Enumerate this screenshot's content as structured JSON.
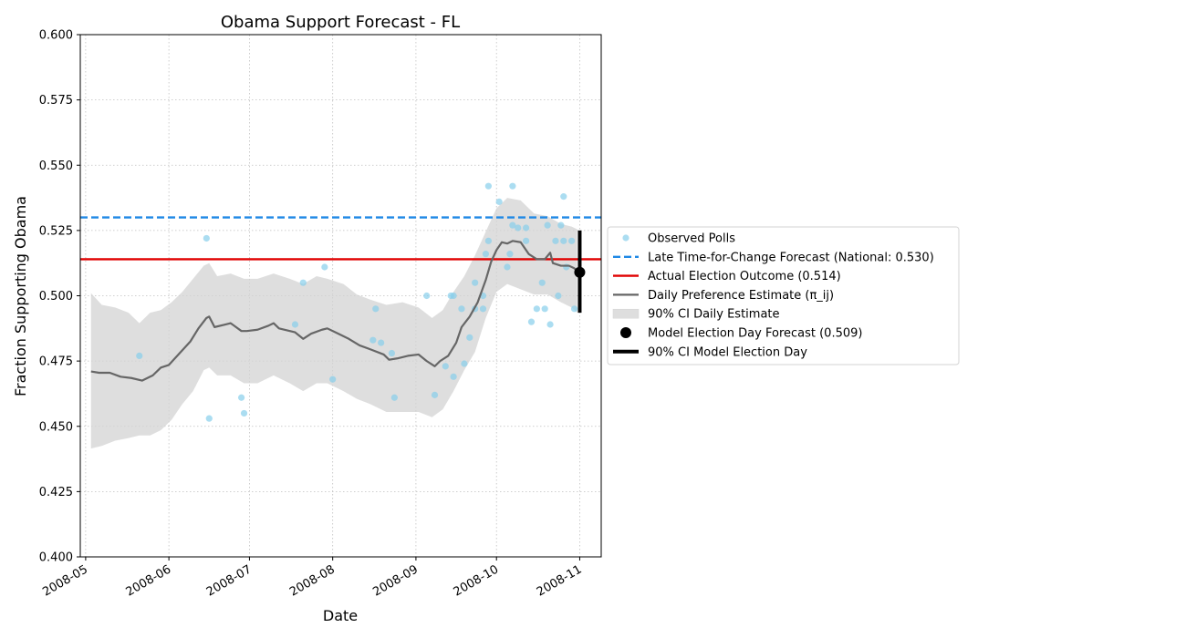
{
  "chart_data": {
    "type": "line",
    "title": "Obama Support Forecast - FL",
    "xlabel": "Date",
    "ylabel": "Fraction Supporting Obama",
    "xlim": [
      "2008-04-29",
      "2008-11-09"
    ],
    "ylim": [
      0.4,
      0.6
    ],
    "grid": true,
    "legend_placement": "right, outside plot",
    "x_ticks": [
      "2008-05",
      "2008-06",
      "2008-07",
      "2008-08",
      "2008-09",
      "2008-10",
      "2008-11"
    ],
    "y_ticks": [
      "0.400",
      "0.425",
      "0.450",
      "0.475",
      "0.500",
      "0.525",
      "0.550",
      "0.575",
      "0.600"
    ],
    "colors": {
      "polls": "#87ceeb",
      "forecast_line": "#1e88e5",
      "actual_line": "#e00000",
      "estimate_line": "#666666",
      "ci_band": "#d3d3d3",
      "model_point": "#000000"
    },
    "series": [
      {
        "name": "Observed Polls",
        "kind": "scatter",
        "points": [
          {
            "x": "2008-05-21",
            "y": 0.477
          },
          {
            "x": "2008-06-15",
            "y": 0.522
          },
          {
            "x": "2008-06-16",
            "y": 0.453
          },
          {
            "x": "2008-06-28",
            "y": 0.461
          },
          {
            "x": "2008-06-29",
            "y": 0.455
          },
          {
            "x": "2008-07-18",
            "y": 0.489
          },
          {
            "x": "2008-07-21",
            "y": 0.505
          },
          {
            "x": "2008-07-29",
            "y": 0.511
          },
          {
            "x": "2008-08-01",
            "y": 0.468
          },
          {
            "x": "2008-08-16",
            "y": 0.483
          },
          {
            "x": "2008-08-17",
            "y": 0.495
          },
          {
            "x": "2008-08-19",
            "y": 0.482
          },
          {
            "x": "2008-08-23",
            "y": 0.478
          },
          {
            "x": "2008-08-24",
            "y": 0.461
          },
          {
            "x": "2008-09-05",
            "y": 0.5
          },
          {
            "x": "2008-09-08",
            "y": 0.462
          },
          {
            "x": "2008-09-12",
            "y": 0.473
          },
          {
            "x": "2008-09-14",
            "y": 0.5
          },
          {
            "x": "2008-09-15",
            "y": 0.469
          },
          {
            "x": "2008-09-15",
            "y": 0.5
          },
          {
            "x": "2008-09-18",
            "y": 0.495
          },
          {
            "x": "2008-09-19",
            "y": 0.474
          },
          {
            "x": "2008-09-21",
            "y": 0.484
          },
          {
            "x": "2008-09-23",
            "y": 0.505
          },
          {
            "x": "2008-09-23",
            "y": 0.495
          },
          {
            "x": "2008-09-26",
            "y": 0.5
          },
          {
            "x": "2008-09-26",
            "y": 0.495
          },
          {
            "x": "2008-09-27",
            "y": 0.516
          },
          {
            "x": "2008-09-28",
            "y": 0.521
          },
          {
            "x": "2008-09-28",
            "y": 0.542
          },
          {
            "x": "2008-10-02",
            "y": 0.536
          },
          {
            "x": "2008-10-05",
            "y": 0.511
          },
          {
            "x": "2008-10-06",
            "y": 0.516
          },
          {
            "x": "2008-10-07",
            "y": 0.542
          },
          {
            "x": "2008-10-07",
            "y": 0.527
          },
          {
            "x": "2008-10-09",
            "y": 0.526
          },
          {
            "x": "2008-10-12",
            "y": 0.526
          },
          {
            "x": "2008-10-12",
            "y": 0.521
          },
          {
            "x": "2008-10-14",
            "y": 0.49
          },
          {
            "x": "2008-10-16",
            "y": 0.495
          },
          {
            "x": "2008-10-18",
            "y": 0.505
          },
          {
            "x": "2008-10-19",
            "y": 0.495
          },
          {
            "x": "2008-10-20",
            "y": 0.527
          },
          {
            "x": "2008-10-21",
            "y": 0.489
          },
          {
            "x": "2008-10-23",
            "y": 0.521
          },
          {
            "x": "2008-10-24",
            "y": 0.5
          },
          {
            "x": "2008-10-25",
            "y": 0.527
          },
          {
            "x": "2008-10-26",
            "y": 0.521
          },
          {
            "x": "2008-10-26",
            "y": 0.538
          },
          {
            "x": "2008-10-27",
            "y": 0.511
          },
          {
            "x": "2008-10-29",
            "y": 0.521
          },
          {
            "x": "2008-10-30",
            "y": 0.495
          }
        ]
      },
      {
        "name": "Late Time-for-Change Forecast (National: 0.530)",
        "kind": "hline",
        "y": 0.53,
        "style": "dashed"
      },
      {
        "name": "Actual Election Outcome (0.514)",
        "kind": "hline",
        "y": 0.514,
        "style": "solid"
      },
      {
        "name": "Daily Preference Estimate (π_ij)",
        "kind": "line",
        "points": [
          {
            "x": "2008-05-03",
            "y": 0.471
          },
          {
            "x": "2008-05-06",
            "y": 0.4705
          },
          {
            "x": "2008-05-10",
            "y": 0.4705
          },
          {
            "x": "2008-05-14",
            "y": 0.469
          },
          {
            "x": "2008-05-18",
            "y": 0.4685
          },
          {
            "x": "2008-05-22",
            "y": 0.4675
          },
          {
            "x": "2008-05-26",
            "y": 0.4695
          },
          {
            "x": "2008-05-29",
            "y": 0.4725
          },
          {
            "x": "2008-06-01",
            "y": 0.4735
          },
          {
            "x": "2008-06-05",
            "y": 0.478
          },
          {
            "x": "2008-06-09",
            "y": 0.4825
          },
          {
            "x": "2008-06-12",
            "y": 0.4875
          },
          {
            "x": "2008-06-15",
            "y": 0.4915
          },
          {
            "x": "2008-06-16",
            "y": 0.492
          },
          {
            "x": "2008-06-18",
            "y": 0.488
          },
          {
            "x": "2008-06-22",
            "y": 0.489
          },
          {
            "x": "2008-06-24",
            "y": 0.4895
          },
          {
            "x": "2008-06-28",
            "y": 0.4865
          },
          {
            "x": "2008-06-30",
            "y": 0.4865
          },
          {
            "x": "2008-07-04",
            "y": 0.487
          },
          {
            "x": "2008-07-08",
            "y": 0.4885
          },
          {
            "x": "2008-07-10",
            "y": 0.4895
          },
          {
            "x": "2008-07-12",
            "y": 0.4875
          },
          {
            "x": "2008-07-18",
            "y": 0.486
          },
          {
            "x": "2008-07-21",
            "y": 0.4835
          },
          {
            "x": "2008-07-24",
            "y": 0.4855
          },
          {
            "x": "2008-07-28",
            "y": 0.487
          },
          {
            "x": "2008-07-30",
            "y": 0.4875
          },
          {
            "x": "2008-08-03",
            "y": 0.4855
          },
          {
            "x": "2008-08-07",
            "y": 0.4835
          },
          {
            "x": "2008-08-11",
            "y": 0.481
          },
          {
            "x": "2008-08-15",
            "y": 0.4795
          },
          {
            "x": "2008-08-20",
            "y": 0.4775
          },
          {
            "x": "2008-08-22",
            "y": 0.4755
          },
          {
            "x": "2008-08-25",
            "y": 0.476
          },
          {
            "x": "2008-08-29",
            "y": 0.477
          },
          {
            "x": "2008-09-02",
            "y": 0.4775
          },
          {
            "x": "2008-09-05",
            "y": 0.475
          },
          {
            "x": "2008-09-08",
            "y": 0.473
          },
          {
            "x": "2008-09-10",
            "y": 0.475
          },
          {
            "x": "2008-09-13",
            "y": 0.477
          },
          {
            "x": "2008-09-16",
            "y": 0.482
          },
          {
            "x": "2008-09-18",
            "y": 0.488
          },
          {
            "x": "2008-09-21",
            "y": 0.492
          },
          {
            "x": "2008-09-24",
            "y": 0.4975
          },
          {
            "x": "2008-09-27",
            "y": 0.506
          },
          {
            "x": "2008-09-29",
            "y": 0.513
          },
          {
            "x": "2008-10-01",
            "y": 0.5175
          },
          {
            "x": "2008-10-03",
            "y": 0.5205
          },
          {
            "x": "2008-10-05",
            "y": 0.52
          },
          {
            "x": "2008-10-07",
            "y": 0.521
          },
          {
            "x": "2008-10-10",
            "y": 0.5205
          },
          {
            "x": "2008-10-13",
            "y": 0.516
          },
          {
            "x": "2008-10-16",
            "y": 0.514
          },
          {
            "x": "2008-10-19",
            "y": 0.514
          },
          {
            "x": "2008-10-21",
            "y": 0.5165
          },
          {
            "x": "2008-10-22",
            "y": 0.5125
          },
          {
            "x": "2008-10-25",
            "y": 0.5115
          },
          {
            "x": "2008-10-28",
            "y": 0.5115
          },
          {
            "x": "2008-10-30",
            "y": 0.5105
          },
          {
            "x": "2008-10-31",
            "y": 0.5095
          }
        ]
      },
      {
        "name": "90% CI Daily Estimate",
        "kind": "band",
        "points": [
          {
            "x": "2008-05-03",
            "lo": 0.4415,
            "hi": 0.501
          },
          {
            "x": "2008-05-07",
            "lo": 0.4425,
            "hi": 0.4965
          },
          {
            "x": "2008-05-12",
            "lo": 0.4445,
            "hi": 0.4955
          },
          {
            "x": "2008-05-17",
            "lo": 0.4455,
            "hi": 0.4935
          },
          {
            "x": "2008-05-21",
            "lo": 0.4465,
            "hi": 0.4895
          },
          {
            "x": "2008-05-25",
            "lo": 0.4465,
            "hi": 0.4935
          },
          {
            "x": "2008-05-29",
            "lo": 0.4485,
            "hi": 0.4945
          },
          {
            "x": "2008-06-02",
            "lo": 0.4525,
            "hi": 0.4975
          },
          {
            "x": "2008-06-06",
            "lo": 0.4585,
            "hi": 0.5015
          },
          {
            "x": "2008-06-10",
            "lo": 0.4635,
            "hi": 0.5065
          },
          {
            "x": "2008-06-14",
            "lo": 0.4715,
            "hi": 0.5115
          },
          {
            "x": "2008-06-16",
            "lo": 0.4725,
            "hi": 0.5125
          },
          {
            "x": "2008-06-19",
            "lo": 0.4695,
            "hi": 0.5075
          },
          {
            "x": "2008-06-24",
            "lo": 0.4695,
            "hi": 0.5085
          },
          {
            "x": "2008-06-29",
            "lo": 0.4665,
            "hi": 0.5065
          },
          {
            "x": "2008-07-04",
            "lo": 0.4665,
            "hi": 0.5065
          },
          {
            "x": "2008-07-10",
            "lo": 0.4695,
            "hi": 0.5085
          },
          {
            "x": "2008-07-16",
            "lo": 0.4665,
            "hi": 0.5065
          },
          {
            "x": "2008-07-21",
            "lo": 0.4635,
            "hi": 0.5045
          },
          {
            "x": "2008-07-26",
            "lo": 0.4665,
            "hi": 0.5075
          },
          {
            "x": "2008-07-30",
            "lo": 0.4665,
            "hi": 0.5065
          },
          {
            "x": "2008-08-05",
            "lo": 0.4635,
            "hi": 0.5045
          },
          {
            "x": "2008-08-10",
            "lo": 0.4605,
            "hi": 0.5005
          },
          {
            "x": "2008-08-15",
            "lo": 0.4585,
            "hi": 0.4985
          },
          {
            "x": "2008-08-21",
            "lo": 0.4555,
            "hi": 0.4965
          },
          {
            "x": "2008-08-27",
            "lo": 0.4555,
            "hi": 0.4975
          },
          {
            "x": "2008-09-02",
            "lo": 0.4555,
            "hi": 0.4955
          },
          {
            "x": "2008-09-07",
            "lo": 0.4535,
            "hi": 0.4915
          },
          {
            "x": "2008-09-11",
            "lo": 0.4565,
            "hi": 0.4945
          },
          {
            "x": "2008-09-15",
            "lo": 0.4635,
            "hi": 0.5015
          },
          {
            "x": "2008-09-19",
            "lo": 0.4715,
            "hi": 0.5075
          },
          {
            "x": "2008-09-23",
            "lo": 0.4785,
            "hi": 0.5155
          },
          {
            "x": "2008-09-27",
            "lo": 0.4915,
            "hi": 0.5245
          },
          {
            "x": "2008-10-01",
            "lo": 0.5015,
            "hi": 0.5335
          },
          {
            "x": "2008-10-05",
            "lo": 0.5045,
            "hi": 0.5375
          },
          {
            "x": "2008-10-10",
            "lo": 0.5025,
            "hi": 0.5365
          },
          {
            "x": "2008-10-15",
            "lo": 0.5005,
            "hi": 0.5315
          },
          {
            "x": "2008-10-20",
            "lo": 0.5005,
            "hi": 0.5305
          },
          {
            "x": "2008-10-25",
            "lo": 0.4975,
            "hi": 0.5275
          },
          {
            "x": "2008-10-29",
            "lo": 0.4955,
            "hi": 0.5265
          },
          {
            "x": "2008-10-31",
            "lo": 0.4935,
            "hi": 0.5255
          }
        ]
      },
      {
        "name": "Model Election Day Forecast (0.509)",
        "kind": "point",
        "x": "2008-11-01",
        "y": 0.509
      },
      {
        "name": "90% CI Model Election Day",
        "kind": "errorbar",
        "x": "2008-11-01",
        "lo": 0.4935,
        "hi": 0.525
      }
    ]
  }
}
